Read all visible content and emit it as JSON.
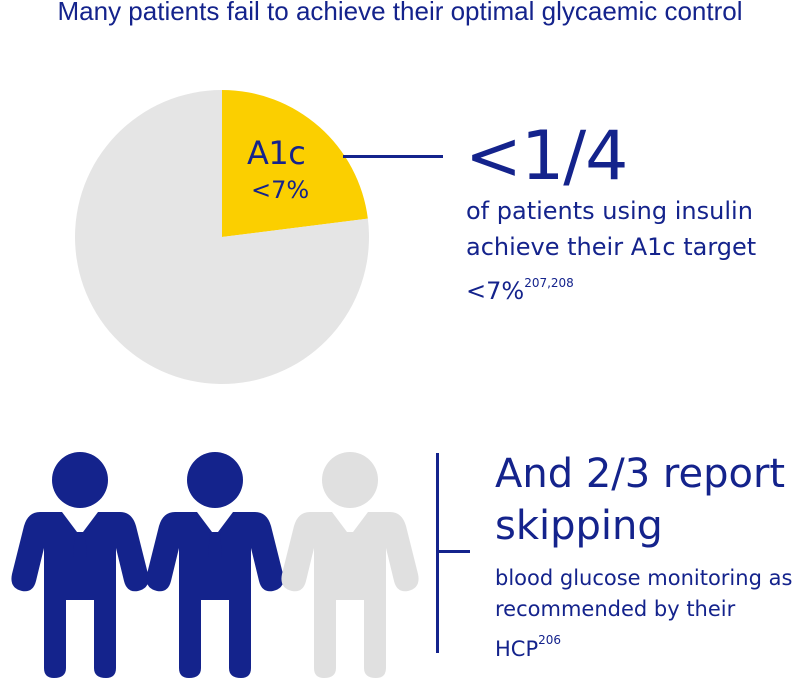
{
  "title": "Many patients fail to achieve their optimal glycaemic control",
  "colors": {
    "navy": "#14238c",
    "yellow": "#fbcf00",
    "grey": "#e5e5e5"
  },
  "chart_data": {
    "type": "pie",
    "slices": [
      {
        "label": "A1c <7%",
        "value": 0.23,
        "color": "#fbcf00"
      },
      {
        "label": "",
        "value": 0.77,
        "color": "#e5e5e5"
      }
    ],
    "slice_label_main": "A1c",
    "slice_label_sub": "<7%"
  },
  "stat1": {
    "value": "<1/4",
    "description": "of patients using insulin achieve their A1c target <7%",
    "refs": "207,208"
  },
  "people_icons": {
    "icons": [
      "person-icon",
      "person-icon",
      "person-icon"
    ],
    "filled_count": 2,
    "total_count": 3
  },
  "stat2": {
    "headline": "And 2/3 report skipping",
    "description": "blood glucose monitoring as recommended by their HCP",
    "refs": "206"
  }
}
